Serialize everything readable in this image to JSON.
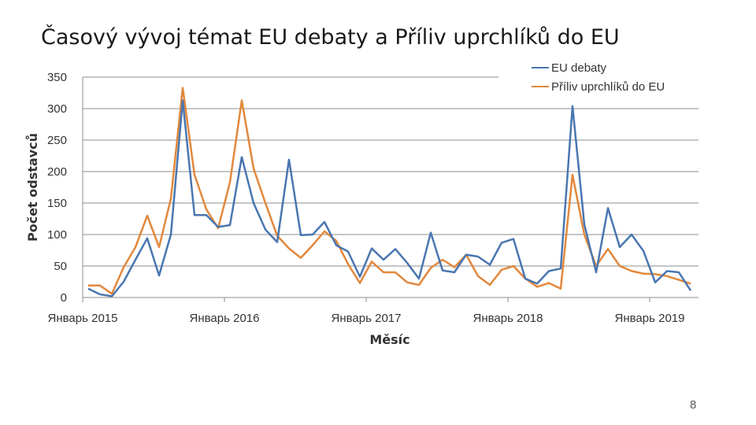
{
  "title": "Časový vývoj témat EU debaty a Příliv uprchlíků do EU",
  "page_number": "8",
  "colors": {
    "series_0": "#4a76b0",
    "series_1": "#e2883c",
    "grid": "#8c8c8c",
    "axis": "#8c8c8c"
  },
  "chart_data": {
    "type": "line",
    "title": "Časový vývoj témat EU debaty a Příliv uprchlíků do EU",
    "xlabel": "Měsíc",
    "ylabel": "Počet odstavců",
    "ylim": [
      0,
      350
    ],
    "yticks": [
      0,
      50,
      100,
      150,
      200,
      250,
      300,
      350
    ],
    "ytick_labels": [
      "0",
      "50",
      "100",
      "150",
      "200",
      "250",
      "300",
      "350"
    ],
    "xtick_labels": [
      "Январь 2015",
      "Январь 2016",
      "Январь 2017",
      "Январь 2018",
      "Январь 2019"
    ],
    "xtick_month_index": [
      0,
      12,
      24,
      36,
      48
    ],
    "grid": true,
    "legend": "top-right",
    "series": [
      {
        "name": "EU debaty",
        "values": [
          14,
          5,
          2,
          25,
          60,
          94,
          35,
          100,
          313,
          131,
          131,
          112,
          115,
          223,
          150,
          108,
          88,
          219,
          99,
          100,
          120,
          83,
          73,
          33,
          78,
          60,
          77,
          55,
          30,
          103,
          43,
          40,
          68,
          65,
          52,
          87,
          93,
          30,
          22,
          42,
          46,
          304,
          116,
          40,
          142,
          80,
          100,
          74,
          24,
          42,
          40,
          11
        ]
      },
      {
        "name": "Příliv uprchlíků do EU",
        "values": [
          19,
          19,
          6,
          48,
          80,
          130,
          80,
          157,
          333,
          195,
          140,
          110,
          183,
          313,
          205,
          150,
          98,
          78,
          63,
          83,
          105,
          90,
          53,
          23,
          57,
          40,
          40,
          24,
          20,
          47,
          60,
          48,
          68,
          34,
          20,
          44,
          50,
          30,
          17,
          23,
          14,
          195,
          100,
          50,
          77,
          50,
          42,
          38,
          37,
          34,
          28,
          22
        ]
      }
    ]
  }
}
